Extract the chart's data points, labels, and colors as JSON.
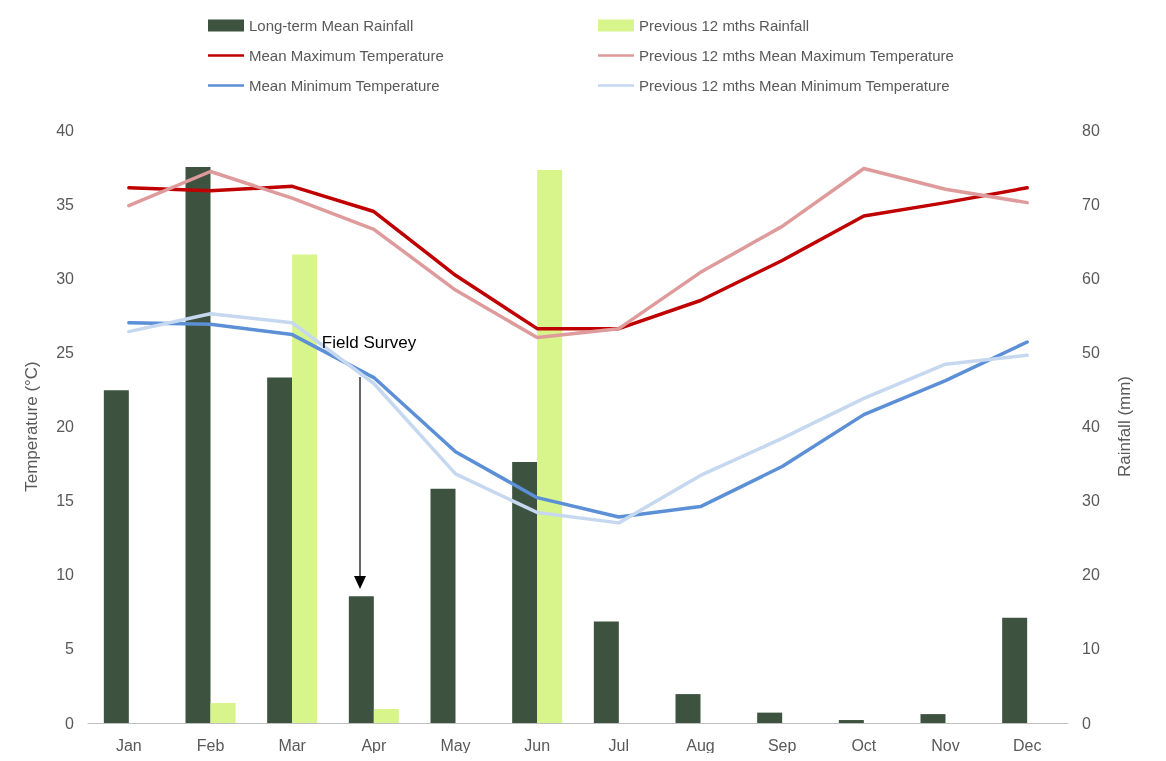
{
  "chart_data": {
    "type": "bar",
    "categories": [
      "Jan",
      "Feb",
      "Mar",
      "Apr",
      "May",
      "Jun",
      "Jul",
      "Aug",
      "Sep",
      "Oct",
      "Nov",
      "Dec"
    ],
    "ylabel": "Temperature (°C)",
    "y2label": "Rainfall (mm)",
    "ylim": [
      0,
      40
    ],
    "yticks": [
      0,
      5,
      10,
      15,
      20,
      25,
      30,
      35,
      40
    ],
    "y2lim": [
      0,
      80
    ],
    "y2ticks": [
      0,
      10,
      20,
      30,
      40,
      50,
      60,
      70,
      80
    ],
    "grid": false,
    "legend": "top",
    "marker": "none",
    "annotations": [
      {
        "text": "Field Survey",
        "x": "Apr",
        "y": 23.3
      }
    ],
    "series": [
      {
        "name": "Long-term Mean Rainfall",
        "axis": "y2",
        "color": "#3d5340",
        "values": [
          44.9,
          75.0,
          46.6,
          17.1,
          31.6,
          35.2,
          13.7,
          3.9,
          1.4,
          0.4,
          1.2,
          14.2
        ]
      },
      {
        "name": "Previous 12 mths Rainfall",
        "axis": "y2",
        "color": "#d7f58b",
        "values": [
          null,
          2.7,
          63.2,
          1.9,
          null,
          74.6,
          null,
          null,
          null,
          null,
          null,
          null
        ]
      },
      {
        "name": "Mean Maximum Temperature",
        "type": "line",
        "color": "#c00000",
        "values": [
          36.1,
          35.9,
          36.2,
          34.5,
          30.2,
          26.6,
          26.6,
          28.5,
          31.2,
          34.2,
          35.1,
          36.1
        ]
      },
      {
        "name": "Previous 12 mths Mean Maximum Temperature",
        "type": "line",
        "color": "#df9b9b",
        "values": [
          34.9,
          37.2,
          35.4,
          33.3,
          29.2,
          26.0,
          26.6,
          30.4,
          33.5,
          37.4,
          36.0,
          35.1
        ]
      },
      {
        "name": "Mean Minimum Temperature",
        "type": "line",
        "color": "#5b8fd6",
        "values": [
          27.0,
          26.9,
          26.2,
          23.3,
          18.3,
          15.2,
          13.9,
          14.6,
          17.3,
          20.8,
          23.1,
          25.7
        ]
      },
      {
        "name": "Previous 12 mths Mean Minimum Temperature",
        "type": "line",
        "color": "#c6d8f0",
        "values": [
          26.4,
          27.6,
          27.0,
          22.9,
          16.8,
          14.2,
          13.5,
          16.7,
          19.2,
          21.9,
          24.2,
          24.8
        ]
      }
    ]
  }
}
